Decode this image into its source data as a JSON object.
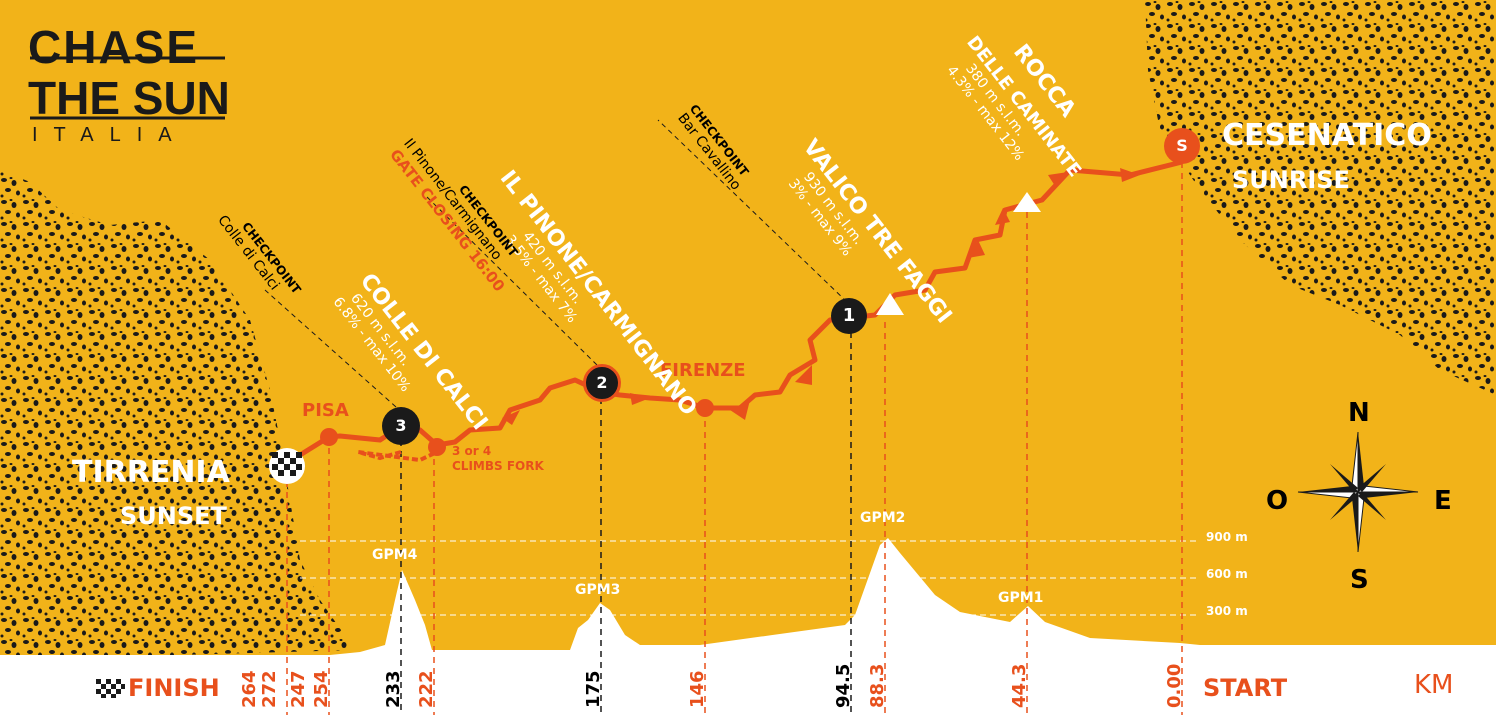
{
  "logo": {
    "line1": "CHASE",
    "line2": "THE SUN",
    "line3": "ITALIA"
  },
  "start": {
    "city": "CESENATICO",
    "subtitle": "SUNRISE",
    "marker": "S"
  },
  "finish": {
    "city": "TIRRENIA",
    "subtitle": "SUNSET"
  },
  "climbs": [
    {
      "name": "ROCCA",
      "name2": "DELLE CAMINATE",
      "altitude": "380 m s.l.m.",
      "gradient": "4.3% - max 12%"
    },
    {
      "name": "VALICO TRE FAGGI",
      "altitude": "930 m s.l.m.",
      "gradient": "3% - max 9%"
    },
    {
      "name": "IL PINONE/CARMIGNANO",
      "altitude": "420 m s.l.m.",
      "gradient": "3.5% - max 7%"
    },
    {
      "name": "COLLE DI CALCI",
      "altitude": "620 m s.l.m.",
      "gradient": "6.8% - max 10%"
    }
  ],
  "checkpoints": [
    {
      "number": "1",
      "label": "CHECKPOINT",
      "name": "Bar Cavallino"
    },
    {
      "number": "2",
      "label": "CHECKPOINT",
      "name": "Il Pinone/Carmignano",
      "note": "GATE CLOSING 16:00"
    },
    {
      "number": "3",
      "label": "CHECKPOINT",
      "name": "Colle di Calci"
    }
  ],
  "places": {
    "firenze": "FIRENZE",
    "pisa": "PISA",
    "fork_line1": "3 or 4",
    "fork_line2": "CLIMBS FORK"
  },
  "gpm": [
    "GPM1",
    "GPM2",
    "GPM3",
    "GPM4"
  ],
  "elevation_ticks": [
    "900 m",
    "600 m",
    "300 m"
  ],
  "compass": {
    "n": "N",
    "s": "S",
    "e": "E",
    "w": "O"
  },
  "axis": {
    "start": "START",
    "finish": "FINISH",
    "unit": "KM"
  },
  "km_marks": [
    "264",
    "272",
    "247",
    "254",
    "233",
    "222",
    "175",
    "146",
    "94.5",
    "88.3",
    "44.3",
    "0.00"
  ],
  "colors": {
    "background": "#f2b319",
    "accent": "#e8501c",
    "texture": "#1a1a1a",
    "text": "#ffffff"
  }
}
